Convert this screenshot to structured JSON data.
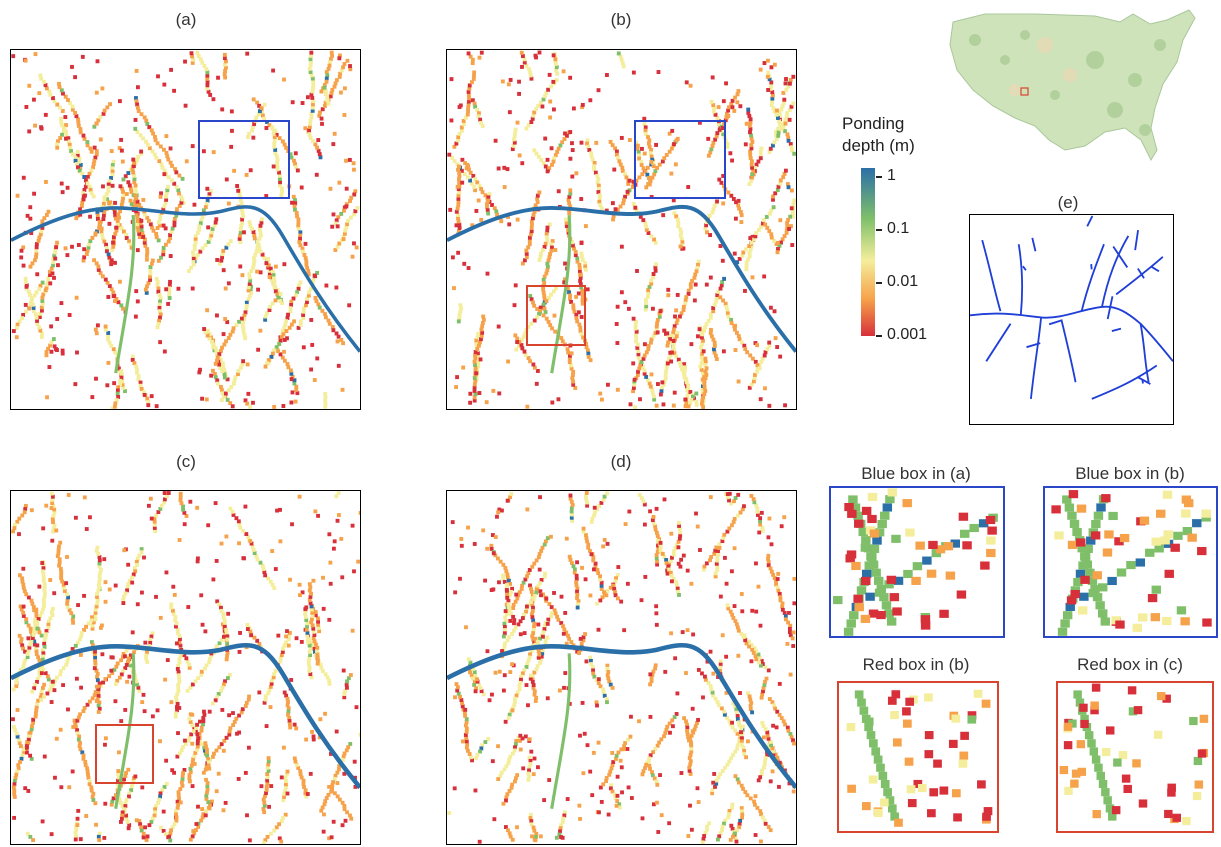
{
  "panels": {
    "a": {
      "label": "(a)"
    },
    "b": {
      "label": "(b)"
    },
    "c": {
      "label": "(c)"
    },
    "d": {
      "label": "(d)"
    },
    "e": {
      "label": "(e)"
    }
  },
  "insets": {
    "blue_a": {
      "title": "Blue box in (a)"
    },
    "blue_b": {
      "title": "Blue box in (b)"
    },
    "red_b": {
      "title": "Red box in (b)"
    },
    "red_c": {
      "title": "Red box in (c)"
    }
  },
  "legend": {
    "title_line1": "Ponding",
    "title_line2": "depth (m)",
    "ticks": [
      "1",
      "0.1",
      "0.01",
      "0.001"
    ],
    "colors": [
      "#2b6fa8",
      "#7fbf6a",
      "#f4ee9c",
      "#f6a24a",
      "#d7303a"
    ]
  },
  "colors": {
    "blue_box": "#2a46c9",
    "red_box": "#d9442e",
    "stream_blue": "#1f3fd6",
    "map_green": "#bcd8a8"
  }
}
